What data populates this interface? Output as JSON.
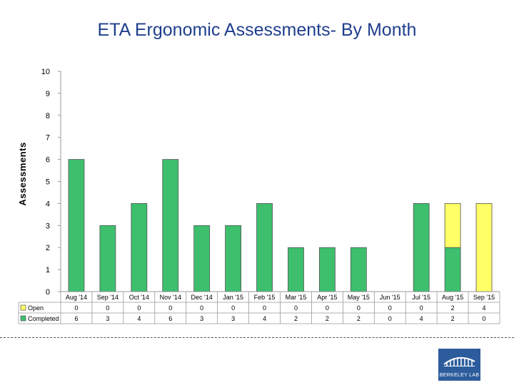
{
  "chart_data": {
    "type": "bar",
    "stacked": true,
    "title": "ETA Ergonomic Assessments- By Month",
    "xlabel": "",
    "ylabel": "Assessments",
    "ylim": [
      0,
      10
    ],
    "yticks": [
      "0",
      "1",
      "2",
      "3",
      "4",
      "5",
      "6",
      "7",
      "8",
      "9",
      "10"
    ],
    "grid": false,
    "legend": "data table",
    "categories": [
      "Aug '14",
      "Sep '14",
      "Oct '14",
      "Nov '14",
      "Dec '14",
      "Jan '15",
      "Feb '15",
      "Mar '15",
      "Apr '15",
      "May '15",
      "Jun '15",
      "Jul '15",
      "Aug '15",
      "Sep '15"
    ],
    "series": [
      {
        "name": "Completed",
        "color": "#3dbf6e",
        "values": [
          6,
          3,
          4,
          6,
          3,
          3,
          4,
          2,
          2,
          2,
          0,
          4,
          2,
          0
        ]
      },
      {
        "name": "Open",
        "color": "#ffff66",
        "values": [
          0,
          0,
          0,
          0,
          0,
          0,
          0,
          0,
          0,
          0,
          0,
          0,
          2,
          4
        ]
      }
    ],
    "table_rows": [
      {
        "name": "Open",
        "values": [
          "0",
          "0",
          "0",
          "0",
          "0",
          "0",
          "0",
          "0",
          "0",
          "0",
          "0",
          "0",
          "2",
          "4"
        ]
      },
      {
        "name": "Completed",
        "values": [
          "6",
          "3",
          "4",
          "6",
          "3",
          "3",
          "4",
          "2",
          "2",
          "2",
          "0",
          "4",
          "2",
          "0"
        ]
      }
    ]
  },
  "logo": {
    "text": "BERKELEY LAB"
  }
}
